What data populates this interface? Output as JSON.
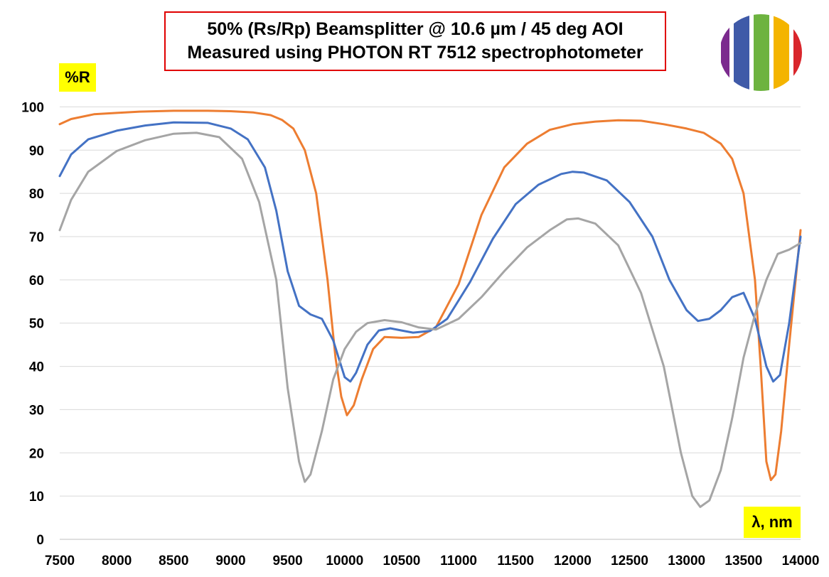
{
  "chart_data": {
    "type": "line",
    "title": "50% (Rs/Rp) Beamsplitter @ 10.6 µm / 45 deg AOI",
    "subtitle": "Measured using PHOTON RT 7512 spectrophotometer",
    "xlabel": "λ, nm",
    "ylabel": "%R",
    "xlim": [
      7500,
      14000
    ],
    "ylim": [
      0,
      105
    ],
    "x_ticks": [
      "7500",
      "8000",
      "8500",
      "9000",
      "9500",
      "10000",
      "10500",
      "11000",
      "11500",
      "12000",
      "12500",
      "13000",
      "13500",
      "14000"
    ],
    "y_ticks": [
      "0",
      "10",
      "20",
      "30",
      "40",
      "50",
      "60",
      "70",
      "80",
      "90",
      "100"
    ],
    "grid": "horizontal",
    "legend": "none",
    "series": [
      {
        "color": "#ED7D31",
        "points": [
          [
            7500,
            96
          ],
          [
            7600,
            97.2
          ],
          [
            7800,
            98.3
          ],
          [
            8000,
            98.6
          ],
          [
            8200,
            98.9
          ],
          [
            8500,
            99.1
          ],
          [
            8800,
            99.1
          ],
          [
            9000,
            99.0
          ],
          [
            9200,
            98.7
          ],
          [
            9350,
            98.1
          ],
          [
            9450,
            97.0
          ],
          [
            9550,
            95.0
          ],
          [
            9650,
            90.0
          ],
          [
            9750,
            80.0
          ],
          [
            9850,
            60.0
          ],
          [
            9920,
            42.0
          ],
          [
            9970,
            33.0
          ],
          [
            10020,
            28.7
          ],
          [
            10080,
            31.0
          ],
          [
            10150,
            37.0
          ],
          [
            10250,
            44.0
          ],
          [
            10350,
            46.8
          ],
          [
            10500,
            46.6
          ],
          [
            10650,
            46.8
          ],
          [
            10800,
            49.0
          ],
          [
            11000,
            59.0
          ],
          [
            11200,
            75.0
          ],
          [
            11400,
            86.0
          ],
          [
            11600,
            91.5
          ],
          [
            11800,
            94.7
          ],
          [
            12000,
            96.0
          ],
          [
            12200,
            96.6
          ],
          [
            12400,
            96.9
          ],
          [
            12600,
            96.8
          ],
          [
            12800,
            96.0
          ],
          [
            13000,
            95.0
          ],
          [
            13150,
            94.0
          ],
          [
            13300,
            91.5
          ],
          [
            13400,
            88.0
          ],
          [
            13500,
            80.0
          ],
          [
            13600,
            60.0
          ],
          [
            13650,
            40.0
          ],
          [
            13700,
            18.0
          ],
          [
            13740,
            13.7
          ],
          [
            13780,
            15.0
          ],
          [
            13830,
            25.0
          ],
          [
            13900,
            45.0
          ],
          [
            14000,
            71.5
          ]
        ]
      },
      {
        "color": "#4472C4",
        "points": [
          [
            7500,
            84
          ],
          [
            7600,
            89.0
          ],
          [
            7750,
            92.5
          ],
          [
            8000,
            94.5
          ],
          [
            8250,
            95.7
          ],
          [
            8500,
            96.4
          ],
          [
            8800,
            96.3
          ],
          [
            9000,
            95.0
          ],
          [
            9150,
            92.5
          ],
          [
            9300,
            86.0
          ],
          [
            9400,
            76.0
          ],
          [
            9500,
            62.0
          ],
          [
            9600,
            54.0
          ],
          [
            9700,
            52.0
          ],
          [
            9800,
            51.0
          ],
          [
            9900,
            46.0
          ],
          [
            10000,
            37.5
          ],
          [
            10050,
            36.5
          ],
          [
            10100,
            38.5
          ],
          [
            10200,
            45.0
          ],
          [
            10300,
            48.3
          ],
          [
            10400,
            48.8
          ],
          [
            10500,
            48.3
          ],
          [
            10600,
            47.8
          ],
          [
            10750,
            48.2
          ],
          [
            10900,
            51.0
          ],
          [
            11100,
            59.5
          ],
          [
            11300,
            69.5
          ],
          [
            11500,
            77.5
          ],
          [
            11700,
            82.0
          ],
          [
            11900,
            84.5
          ],
          [
            12000,
            85.0
          ],
          [
            12100,
            84.8
          ],
          [
            12300,
            83.0
          ],
          [
            12500,
            78.0
          ],
          [
            12700,
            70.0
          ],
          [
            12850,
            60.0
          ],
          [
            13000,
            53.0
          ],
          [
            13100,
            50.5
          ],
          [
            13200,
            51.0
          ],
          [
            13300,
            53.0
          ],
          [
            13400,
            56.0
          ],
          [
            13500,
            57.0
          ],
          [
            13600,
            51.0
          ],
          [
            13700,
            40.0
          ],
          [
            13760,
            36.5
          ],
          [
            13820,
            38.0
          ],
          [
            13900,
            50.0
          ],
          [
            14000,
            70.0
          ]
        ]
      },
      {
        "color": "#A5A5A5",
        "points": [
          [
            7500,
            71.5
          ],
          [
            7600,
            78.5
          ],
          [
            7750,
            85.0
          ],
          [
            8000,
            89.8
          ],
          [
            8250,
            92.3
          ],
          [
            8500,
            93.8
          ],
          [
            8700,
            94.0
          ],
          [
            8900,
            93.0
          ],
          [
            9100,
            88.0
          ],
          [
            9250,
            78.0
          ],
          [
            9400,
            60.0
          ],
          [
            9500,
            35.0
          ],
          [
            9600,
            18.0
          ],
          [
            9650,
            13.3
          ],
          [
            9700,
            15.0
          ],
          [
            9800,
            25.0
          ],
          [
            9900,
            37.0
          ],
          [
            10000,
            44.0
          ],
          [
            10100,
            48.0
          ],
          [
            10200,
            50.0
          ],
          [
            10350,
            50.7
          ],
          [
            10500,
            50.2
          ],
          [
            10650,
            49.0
          ],
          [
            10800,
            48.5
          ],
          [
            11000,
            51.0
          ],
          [
            11200,
            56.0
          ],
          [
            11400,
            62.0
          ],
          [
            11600,
            67.5
          ],
          [
            11800,
            71.5
          ],
          [
            11950,
            74.0
          ],
          [
            12050,
            74.2
          ],
          [
            12200,
            73.0
          ],
          [
            12400,
            68.0
          ],
          [
            12600,
            57.0
          ],
          [
            12800,
            40.0
          ],
          [
            12950,
            20.0
          ],
          [
            13050,
            10.0
          ],
          [
            13120,
            7.5
          ],
          [
            13200,
            9.0
          ],
          [
            13300,
            16.0
          ],
          [
            13400,
            28.0
          ],
          [
            13500,
            42.0
          ],
          [
            13600,
            52.0
          ],
          [
            13700,
            60.0
          ],
          [
            13800,
            66.0
          ],
          [
            13900,
            67.0
          ],
          [
            14000,
            68.5
          ]
        ]
      }
    ]
  },
  "logo": {
    "icon": "spectral-stripes-logo-icon",
    "colors": [
      "#7b2a8e",
      "#3f5aa8",
      "#6db33f",
      "#f4b400",
      "#d9262c"
    ]
  }
}
